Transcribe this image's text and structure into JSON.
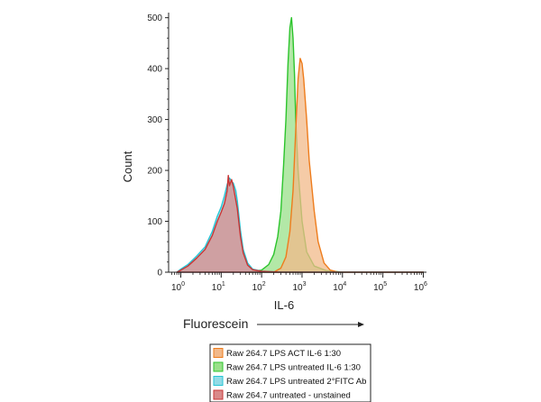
{
  "chart_data": {
    "type": "area",
    "title": "",
    "xlabel": "IL-6",
    "ylabel": "Count",
    "secondary_label": "Fluorescein",
    "x_scale": "log",
    "xlim": [
      0.5,
      1200000
    ],
    "ylim": [
      0,
      510
    ],
    "x_ticks": [
      {
        "base": "10",
        "exp": "0"
      },
      {
        "base": "10",
        "exp": "1"
      },
      {
        "base": "10",
        "exp": "2"
      },
      {
        "base": "10",
        "exp": "3"
      },
      {
        "base": "10",
        "exp": "4"
      },
      {
        "base": "10",
        "exp": "5"
      },
      {
        "base": "10",
        "exp": "6"
      }
    ],
    "y_ticks": [
      "0",
      "100",
      "200",
      "300",
      "400",
      "500"
    ],
    "y_tick_values": [
      0,
      100,
      200,
      300,
      400,
      500
    ],
    "grid": false,
    "legend_position": "bottom",
    "series": [
      {
        "name": "Raw 264.7 untreated - unstained",
        "fill": "#d98a8a",
        "stroke": "#c93535",
        "points": [
          [
            0.8,
            0
          ],
          [
            1,
            4
          ],
          [
            1.5,
            12
          ],
          [
            2.5,
            28
          ],
          [
            4,
            45
          ],
          [
            6,
            72
          ],
          [
            8,
            100
          ],
          [
            10,
            118
          ],
          [
            12,
            135
          ],
          [
            14,
            160
          ],
          [
            15,
            190
          ],
          [
            16,
            170
          ],
          [
            18,
            182
          ],
          [
            20,
            168
          ],
          [
            25,
            125
          ],
          [
            30,
            70
          ],
          [
            35,
            38
          ],
          [
            45,
            14
          ],
          [
            60,
            5
          ],
          [
            100,
            2
          ],
          [
            300,
            0
          ],
          [
            1000000,
            0
          ]
        ]
      },
      {
        "name": "Raw 264.7 LPS untreated 2°FITC Ab",
        "fill": "#93dbe6",
        "stroke": "#27c6d6",
        "points": [
          [
            0.8,
            0
          ],
          [
            1,
            6
          ],
          [
            1.5,
            15
          ],
          [
            2.5,
            32
          ],
          [
            4,
            50
          ],
          [
            6,
            80
          ],
          [
            8,
            110
          ],
          [
            10,
            128
          ],
          [
            12,
            150
          ],
          [
            14,
            172
          ],
          [
            16,
            185
          ],
          [
            18,
            178
          ],
          [
            20,
            175
          ],
          [
            23,
            160
          ],
          [
            25,
            140
          ],
          [
            30,
            82
          ],
          [
            35,
            45
          ],
          [
            45,
            18
          ],
          [
            60,
            6
          ],
          [
            100,
            2
          ],
          [
            300,
            0
          ],
          [
            1000000,
            0
          ]
        ]
      },
      {
        "name": "Raw 264.7 LPS untreated IL-6  1:30",
        "fill": "#9ae08a",
        "stroke": "#2cc42c",
        "points": [
          [
            40,
            0
          ],
          [
            100,
            4
          ],
          [
            150,
            15
          ],
          [
            200,
            35
          ],
          [
            250,
            70
          ],
          [
            300,
            120
          ],
          [
            350,
            210
          ],
          [
            400,
            300
          ],
          [
            450,
            410
          ],
          [
            500,
            480
          ],
          [
            550,
            500
          ],
          [
            600,
            460
          ],
          [
            650,
            390
          ],
          [
            700,
            300
          ],
          [
            800,
            200
          ],
          [
            1000,
            100
          ],
          [
            1300,
            40
          ],
          [
            2000,
            12
          ],
          [
            4000,
            3
          ],
          [
            10000,
            0
          ],
          [
            1000000,
            0
          ]
        ]
      },
      {
        "name": "Raw 264.7 LPS ACT IL-6  1:30",
        "fill": "#f2b98a",
        "stroke": "#ee7c1c",
        "points": [
          [
            200,
            0
          ],
          [
            300,
            8
          ],
          [
            400,
            30
          ],
          [
            500,
            80
          ],
          [
            600,
            160
          ],
          [
            700,
            280
          ],
          [
            800,
            380
          ],
          [
            900,
            420
          ],
          [
            1000,
            410
          ],
          [
            1100,
            380
          ],
          [
            1300,
            300
          ],
          [
            1500,
            220
          ],
          [
            2000,
            120
          ],
          [
            2500,
            60
          ],
          [
            3500,
            18
          ],
          [
            5000,
            4
          ],
          [
            8000,
            0
          ],
          [
            1000000,
            0
          ]
        ]
      }
    ]
  }
}
